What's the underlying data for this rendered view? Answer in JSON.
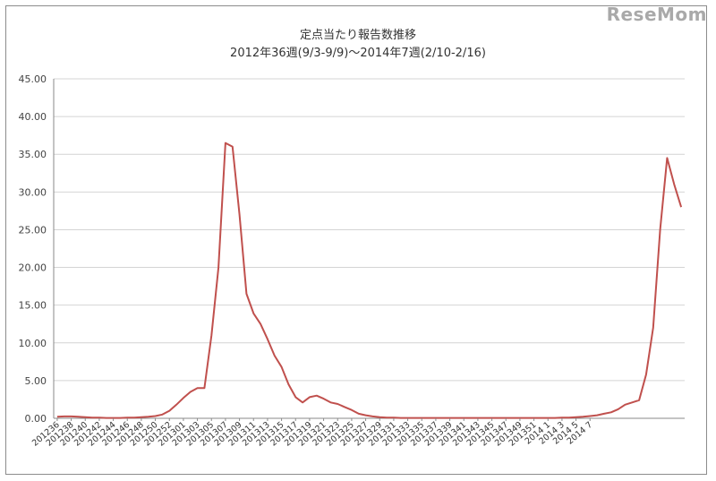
{
  "watermark": "ReseMom",
  "chart_data": {
    "type": "line",
    "title": "定点当たり報告数推移",
    "subtitle": "2012年36週(9/3-9/9)～2014年7週(2/10-2/16)",
    "xlabel": "",
    "ylabel": "",
    "ylim": [
      0,
      45
    ],
    "yticks": [
      "0.00",
      "5.00",
      "10.00",
      "15.00",
      "20.00",
      "25.00",
      "30.00",
      "35.00",
      "40.00",
      "45.00"
    ],
    "grid": true,
    "legend": "none",
    "line_color": "#c0504d",
    "x_tick_labels": [
      "201236",
      "201238",
      "201240",
      "201242",
      "201244",
      "201246",
      "201248",
      "201250",
      "201252",
      "201301",
      "201303",
      "201305",
      "201307",
      "201309",
      "201311",
      "201313",
      "201315",
      "201317",
      "201319",
      "201321",
      "201323",
      "201325",
      "201327",
      "201329",
      "201331",
      "201333",
      "201335",
      "201337",
      "201339",
      "201341",
      "201343",
      "201345",
      "201347",
      "201349",
      "201351",
      "2014 1",
      "2014 3",
      "2014 5",
      "2014 7"
    ],
    "series": [
      {
        "values": [
          0.2,
          0.25,
          0.25,
          0.2,
          0.15,
          0.1,
          0.08,
          0.05,
          0.05,
          0.05,
          0.08,
          0.1,
          0.15,
          0.2,
          0.3,
          0.5,
          1.0,
          1.8,
          2.7,
          3.5,
          4.0,
          4.0,
          11.0,
          20.0,
          36.5,
          36.0,
          27.0,
          16.5,
          13.9,
          12.5,
          10.5,
          8.3,
          6.8,
          4.5,
          2.8,
          2.1,
          2.8,
          3.0,
          2.6,
          2.1,
          1.9,
          1.5,
          1.1,
          0.6,
          0.4,
          0.25,
          0.15,
          0.1,
          0.08,
          0.05,
          0.05,
          0.05,
          0.05,
          0.05,
          0.05,
          0.05,
          0.05,
          0.05,
          0.05,
          0.05,
          0.05,
          0.05,
          0.05,
          0.05,
          0.05,
          0.05,
          0.05,
          0.05,
          0.05,
          0.05,
          0.05,
          0.05,
          0.08,
          0.1,
          0.15,
          0.2,
          0.3,
          0.4,
          0.6,
          0.8,
          1.2,
          1.8,
          2.1,
          2.4,
          5.8,
          12.0,
          25.0,
          34.5,
          31.0,
          28.0
        ]
      }
    ]
  }
}
